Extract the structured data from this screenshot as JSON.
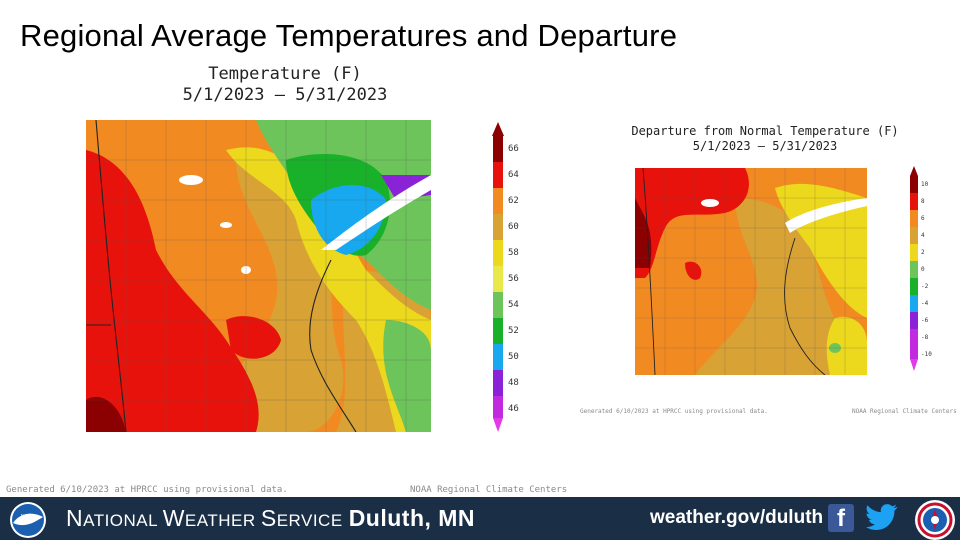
{
  "slide": {
    "title": "Regional Average Temperatures and Departure"
  },
  "left_map": {
    "title": "Temperature (F)",
    "period": "5/1/2023 – 5/31/2023",
    "legend_ticks": [
      "66",
      "64",
      "62",
      "60",
      "58",
      "56",
      "54",
      "52",
      "50",
      "48",
      "46"
    ],
    "colors": [
      "#8b0000",
      "#e8120c",
      "#f28a22",
      "#d8a235",
      "#ecd81c",
      "#6cc45a",
      "#19b02a",
      "#18a8f0",
      "#8a22d8",
      "#c22ae0"
    ],
    "footnote_left": "Generated 6/10/2023 at HPRCC using provisional data.",
    "footnote_right": "NOAA Regional Climate Centers"
  },
  "right_map": {
    "title": "Departure from Normal Temperature (F)",
    "period": "5/1/2023 – 5/31/2023",
    "legend_ticks": [
      "10",
      "8",
      "6",
      "4",
      "2",
      "0",
      "-2",
      "-4",
      "-6",
      "-8",
      "-10"
    ],
    "footnote_left": "Generated 6/10/2023 at HPRCC using provisional data.",
    "footnote_right": "NOAA Regional Climate Centers"
  },
  "footer": {
    "org_first": "N",
    "org_rest1": "ATIONAL ",
    "org_w": "W",
    "org_rest2": "EATHER ",
    "org_s": "S",
    "org_rest3": "ERVICE",
    "office": "Duluth, MN",
    "website": "weather.gov/duluth",
    "facebook_icon": "facebook-icon",
    "twitter_icon": "twitter-icon",
    "noaa_logo_text": "NOAA"
  }
}
